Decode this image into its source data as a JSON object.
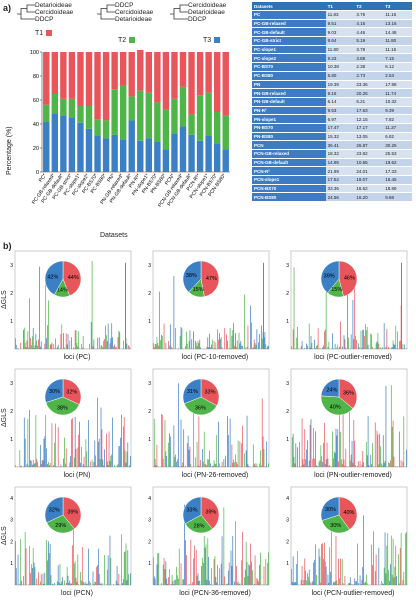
{
  "panel_a_label": "a)",
  "panel_b_label": "b)",
  "trees": [
    {
      "name": "T1",
      "color": "#e8555a",
      "leaves": [
        "Detarioideae",
        "Cercidoideae",
        "DDCP"
      ]
    },
    {
      "name": "T2",
      "color": "#4fb548",
      "leaves": [
        "DDCP",
        "Cercidoideae",
        "Detarioideae"
      ]
    },
    {
      "name": "T3",
      "color": "#3b7fc4",
      "leaves": [
        "Cercidoideae",
        "Detarioideae",
        "DDCP"
      ]
    }
  ],
  "table": {
    "headers": [
      "Datasets",
      "T1",
      "T2",
      "T3"
    ],
    "rows": [
      [
        "PC",
        "11.83",
        "3.76",
        "11.16"
      ],
      [
        "PC-GB-relaxed",
        "9.51",
        "4.15",
        "13.16"
      ],
      [
        "PC-GB-default",
        "9.03",
        "4.46",
        "14.48"
      ],
      [
        "PC-GB-strict",
        "8.64",
        "5.19",
        "11.80"
      ],
      [
        "PC-slope1",
        "11.80",
        "3.78",
        "11.16"
      ],
      [
        "PC-slope2",
        "9.23",
        "3.88",
        "7.15"
      ],
      [
        "PC-BS70",
        "10.38",
        "2.38",
        "6.12"
      ],
      [
        "PC-BS80",
        "6.80",
        "2.73",
        "2.53"
      ],
      [
        "PN",
        "19.39",
        "23.36",
        "17.98"
      ],
      [
        "PN-GB-relaxed",
        "9.16",
        "20.26",
        "11.74"
      ],
      [
        "PN-GB-default",
        "6.14",
        "5.21",
        "10.32"
      ],
      [
        "PN-R²",
        "9.53",
        "17.63",
        "9.39"
      ],
      [
        "PN-slope1",
        "6.97",
        "12.15",
        "7.82"
      ],
      [
        "PN-BS70",
        "17.47",
        "17.17",
        "11.37"
      ],
      [
        "PN-BS80",
        "15.32",
        "13.05",
        "6.82"
      ],
      [
        "PCN",
        "36.41",
        "26.87",
        "30.25"
      ],
      [
        "PCN-GB-relaxed",
        "18.32",
        "23.82",
        "25.53"
      ],
      [
        "PCN-GB-default",
        "14.95",
        "10.55",
        "19.62"
      ],
      [
        "PCN-R²",
        "21.99",
        "24.01",
        "17.33"
      ],
      [
        "PCN-slope1",
        "17.52",
        "19.07",
        "16.45"
      ],
      [
        "PCN-BS70",
        "33.36",
        "18.62",
        "18.89"
      ],
      [
        "PCN-BS80",
        "24.56",
        "16.20",
        "9.88"
      ]
    ]
  },
  "chart_data": [
    {
      "type": "bar",
      "stacked": true,
      "title": "",
      "xlabel": "Datasets",
      "ylabel": "Percentage (%)",
      "ylim": [
        0,
        100
      ],
      "yticks": [
        0,
        20,
        40,
        60,
        80,
        100
      ],
      "categories": [
        "PC",
        "PC-GB-relaxed",
        "PC-GB-default",
        "PC-GB-strict",
        "PC-slope1",
        "PC-slope2",
        "PC-BS70",
        "PC-BS80",
        "PN",
        "PN-GB-relaxed",
        "PN-GB-default",
        "PN-R²",
        "PN-slope1",
        "PN-BS70",
        "PN-BS80",
        "PCN",
        "PCN-GB-relaxed",
        "PCN-GB-default",
        "PCN-R²",
        "PCN-slope1",
        "PCN-BS70",
        "PCN-BS80"
      ],
      "series": [
        {
          "name": "T3",
          "color": "#3b7fc4",
          "values": [
            42,
            49,
            47,
            45,
            41,
            36,
            30,
            28,
            31,
            27,
            43,
            26,
            28,
            25,
            19,
            32,
            38,
            31,
            26,
            30,
            24,
            19
          ]
        },
        {
          "name": "T2",
          "color": "#4fb548",
          "values": [
            14,
            16,
            14,
            16,
            14,
            19,
            14,
            15,
            38,
            45,
            20,
            42,
            38,
            33,
            33,
            29,
            33,
            17,
            38,
            36,
            26,
            28
          ]
        },
        {
          "name": "T1",
          "color": "#e8555a",
          "values": [
            44,
            35,
            39,
            39,
            45,
            45,
            56,
            57,
            31,
            28,
            37,
            36,
            34,
            42,
            48,
            39,
            29,
            52,
            36,
            34,
            50,
            53
          ]
        }
      ]
    },
    {
      "type": "pie",
      "values": [
        44,
        14,
        42
      ],
      "labels": [
        "44%",
        "14%",
        "42%"
      ],
      "xlabel": "loci (PC)",
      "ylabel": "ΔGLS"
    },
    {
      "type": "pie",
      "values": [
        47,
        15,
        38
      ],
      "labels": [
        "47%",
        "15%",
        "38%"
      ],
      "xlabel": "loci (PC-10-removed)",
      "ylabel": ""
    },
    {
      "type": "pie",
      "values": [
        46,
        15,
        39
      ],
      "labels": [
        "46%",
        "15%",
        "39%"
      ],
      "xlabel": "loci (PC-outlier-removed)",
      "ylabel": ""
    },
    {
      "type": "pie",
      "values": [
        32,
        38,
        30
      ],
      "labels": [
        "32%",
        "38%",
        "30%"
      ],
      "xlabel": "loci (PN)",
      "ylabel": "ΔGLS"
    },
    {
      "type": "pie",
      "values": [
        33,
        36,
        31
      ],
      "labels": [
        "33%",
        "36%",
        "31%"
      ],
      "xlabel": "loci (PN-26-removed)",
      "ylabel": ""
    },
    {
      "type": "pie",
      "values": [
        36,
        40,
        24
      ],
      "labels": [
        "36%",
        "40%",
        "24%"
      ],
      "xlabel": "loci (PN-outlier-removed)",
      "ylabel": ""
    },
    {
      "type": "pie",
      "values": [
        39,
        29,
        32
      ],
      "labels": [
        "39%",
        "29%",
        "32%"
      ],
      "xlabel": "loci (PCN)",
      "ylabel": "ΔGLS"
    },
    {
      "type": "pie",
      "values": [
        39,
        28,
        33
      ],
      "labels": [
        "39%",
        "28%",
        "33%"
      ],
      "xlabel": "loci (PCN-36-removed)",
      "ylabel": ""
    },
    {
      "type": "pie",
      "values": [
        40,
        30,
        30
      ],
      "labels": [
        "40%",
        "30%",
        "30%"
      ],
      "xlabel": "loci (PCN-outlier-removed)",
      "ylabel": ""
    }
  ],
  "gls_yticks": [
    [
      "1",
      "2",
      "3"
    ],
    [
      "1",
      "2",
      "3"
    ],
    [
      "1",
      "2",
      "3"
    ],
    [
      "1",
      "2",
      "3"
    ],
    [
      "1",
      "2",
      "3"
    ],
    [
      "1",
      "2",
      "3"
    ],
    [
      "1",
      "2",
      "3",
      "4"
    ],
    [
      "1",
      "2",
      "3",
      "4"
    ],
    [
      "1",
      "2",
      "3",
      "4"
    ]
  ]
}
